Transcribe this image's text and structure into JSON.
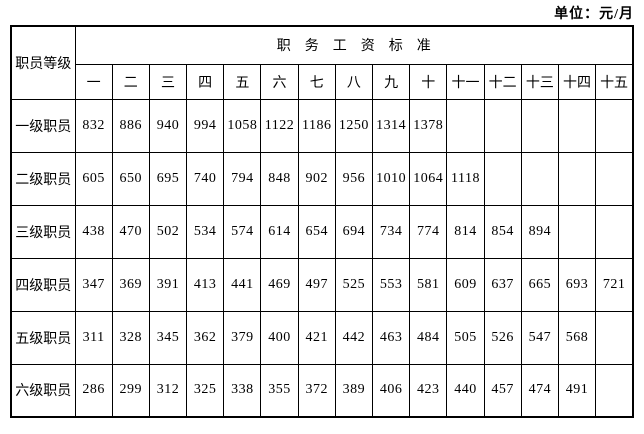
{
  "unit_label": "单位：元/月",
  "table": {
    "corner_header": "职员等级",
    "group_header": "职务工资标准",
    "grade_columns": [
      "一",
      "二",
      "三",
      "四",
      "五",
      "六",
      "七",
      "八",
      "九",
      "十",
      "十一",
      "十二",
      "十三",
      "十四",
      "十五"
    ],
    "rows": [
      {
        "label": "一级职员",
        "values": [
          832,
          886,
          940,
          994,
          1058,
          1122,
          1186,
          1250,
          1314,
          1378
        ]
      },
      {
        "label": "二级职员",
        "values": [
          605,
          650,
          695,
          740,
          794,
          848,
          902,
          956,
          1010,
          1064,
          1118
        ]
      },
      {
        "label": "三级职员",
        "values": [
          438,
          470,
          502,
          534,
          574,
          614,
          654,
          694,
          734,
          774,
          814,
          854,
          894
        ]
      },
      {
        "label": "四级职员",
        "values": [
          347,
          369,
          391,
          413,
          441,
          469,
          497,
          525,
          553,
          581,
          609,
          637,
          665,
          693,
          721
        ]
      },
      {
        "label": "五级职员",
        "values": [
          311,
          328,
          345,
          362,
          379,
          400,
          421,
          442,
          463,
          484,
          505,
          526,
          547,
          568
        ]
      },
      {
        "label": "六级职员",
        "values": [
          286,
          299,
          312,
          325,
          338,
          355,
          372,
          389,
          406,
          423,
          440,
          457,
          474,
          491
        ]
      }
    ],
    "num_step_columns": 15
  }
}
